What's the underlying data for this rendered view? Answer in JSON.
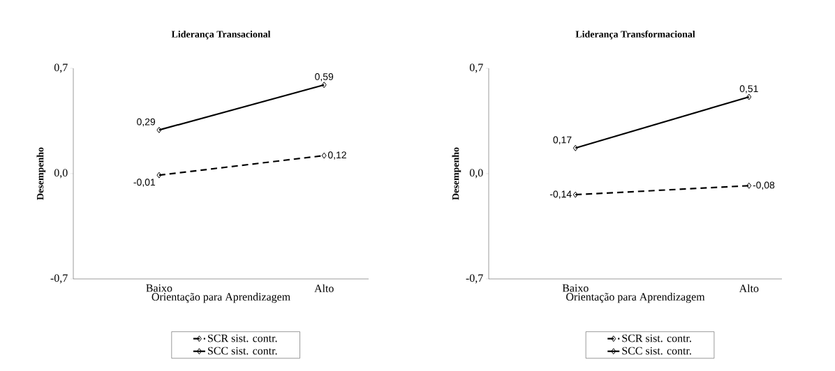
{
  "chart_data": [
    {
      "type": "line",
      "title": "Liderança Transacional",
      "xlabel": "Orientação para Aprendizagem",
      "ylabel": "Desempenho",
      "categories": [
        "Baixo",
        "Alto"
      ],
      "ylim": [
        -0.7,
        0.7
      ],
      "yticks": [
        {
          "value": -0.7,
          "label": "-0,7"
        },
        {
          "value": 0,
          "label": "0,0"
        },
        {
          "value": 0.7,
          "label": "0,7"
        }
      ],
      "legend": "bottom",
      "series": [
        {
          "name": "SCR sist. contr.",
          "color": "#000000",
          "values": [
            -0.01,
            0.12
          ],
          "value_labels": [
            "-0,01",
            "0,12"
          ],
          "marker": "diamond",
          "line_style": "dashed"
        },
        {
          "name": "SCC sist. contr.",
          "color": "#000000",
          "values": [
            0.29,
            0.59
          ],
          "value_labels": [
            "0,29",
            "0,59"
          ],
          "marker": "diamond",
          "line_style": "solid"
        }
      ]
    },
    {
      "type": "line",
      "title": "Liderança Transformacional",
      "xlabel": "Orientação para Aprendizagem",
      "ylabel": "Desempenho",
      "categories": [
        "Baixo",
        "Alto"
      ],
      "ylim": [
        -0.7,
        0.7
      ],
      "yticks": [
        {
          "value": -0.7,
          "label": "-0,7"
        },
        {
          "value": 0,
          "label": "0,0"
        },
        {
          "value": 0.7,
          "label": "0,7"
        }
      ],
      "legend": "bottom",
      "series": [
        {
          "name": "SCR sist. contr.",
          "color": "#000000",
          "values": [
            -0.14,
            -0.08
          ],
          "value_labels": [
            "-0,14",
            "-0,08"
          ],
          "marker": "diamond",
          "line_style": "dashed"
        },
        {
          "name": "SCC sist. contr.",
          "color": "#000000",
          "values": [
            0.17,
            0.51
          ],
          "value_labels": [
            "0,17",
            "0,51"
          ],
          "marker": "diamond",
          "line_style": "solid"
        }
      ]
    }
  ]
}
